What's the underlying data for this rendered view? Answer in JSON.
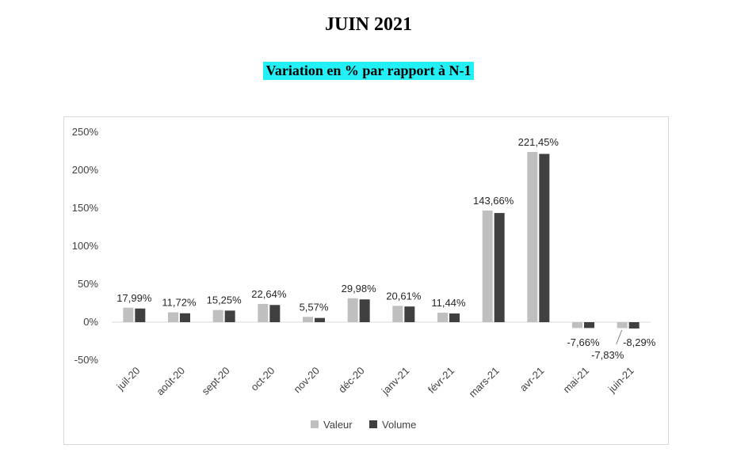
{
  "page": {
    "title": "JUIN 2021",
    "subtitle": "Variation en % par rapport à N-1",
    "subtitle_highlight_color": "#22f0f5"
  },
  "chart_data": {
    "type": "bar",
    "categories": [
      "juil-20",
      "août-20",
      "sept-20",
      "oct-20",
      "nov-20",
      "déc-20",
      "janv-21",
      "févr-21",
      "mars-21",
      "avr-21",
      "mai-21",
      "juin-21"
    ],
    "series": [
      {
        "name": "Valeur",
        "color": "#bfbfbf",
        "values": [
          19,
          13,
          16,
          24,
          7,
          31.5,
          21.5,
          12.5,
          147,
          224,
          -7.66,
          -7.83
        ]
      },
      {
        "name": "Volume",
        "color": "#404040",
        "values": [
          17.99,
          11.72,
          15.25,
          22.64,
          5.57,
          29.98,
          20.61,
          11.44,
          143.66,
          221.45,
          -7.66,
          -8.29
        ]
      }
    ],
    "data_labels": [
      "17,99%",
      "11,72%",
      "15,25%",
      "22,64%",
      "5,57%",
      "29,98%",
      "20,61%",
      "11,44%",
      "143,66%",
      "221,45%",
      "-7,66%",
      "-8,29%"
    ],
    "extra_label": "-7,83%",
    "y_ticks": [
      250,
      200,
      150,
      100,
      50,
      0,
      -50
    ],
    "y_tick_labels": [
      "250%",
      "200%",
      "150%",
      "100%",
      "50%",
      "0%",
      "-50%"
    ],
    "ylim": [
      -50,
      250
    ],
    "grid": false,
    "legend_position": "bottom"
  }
}
